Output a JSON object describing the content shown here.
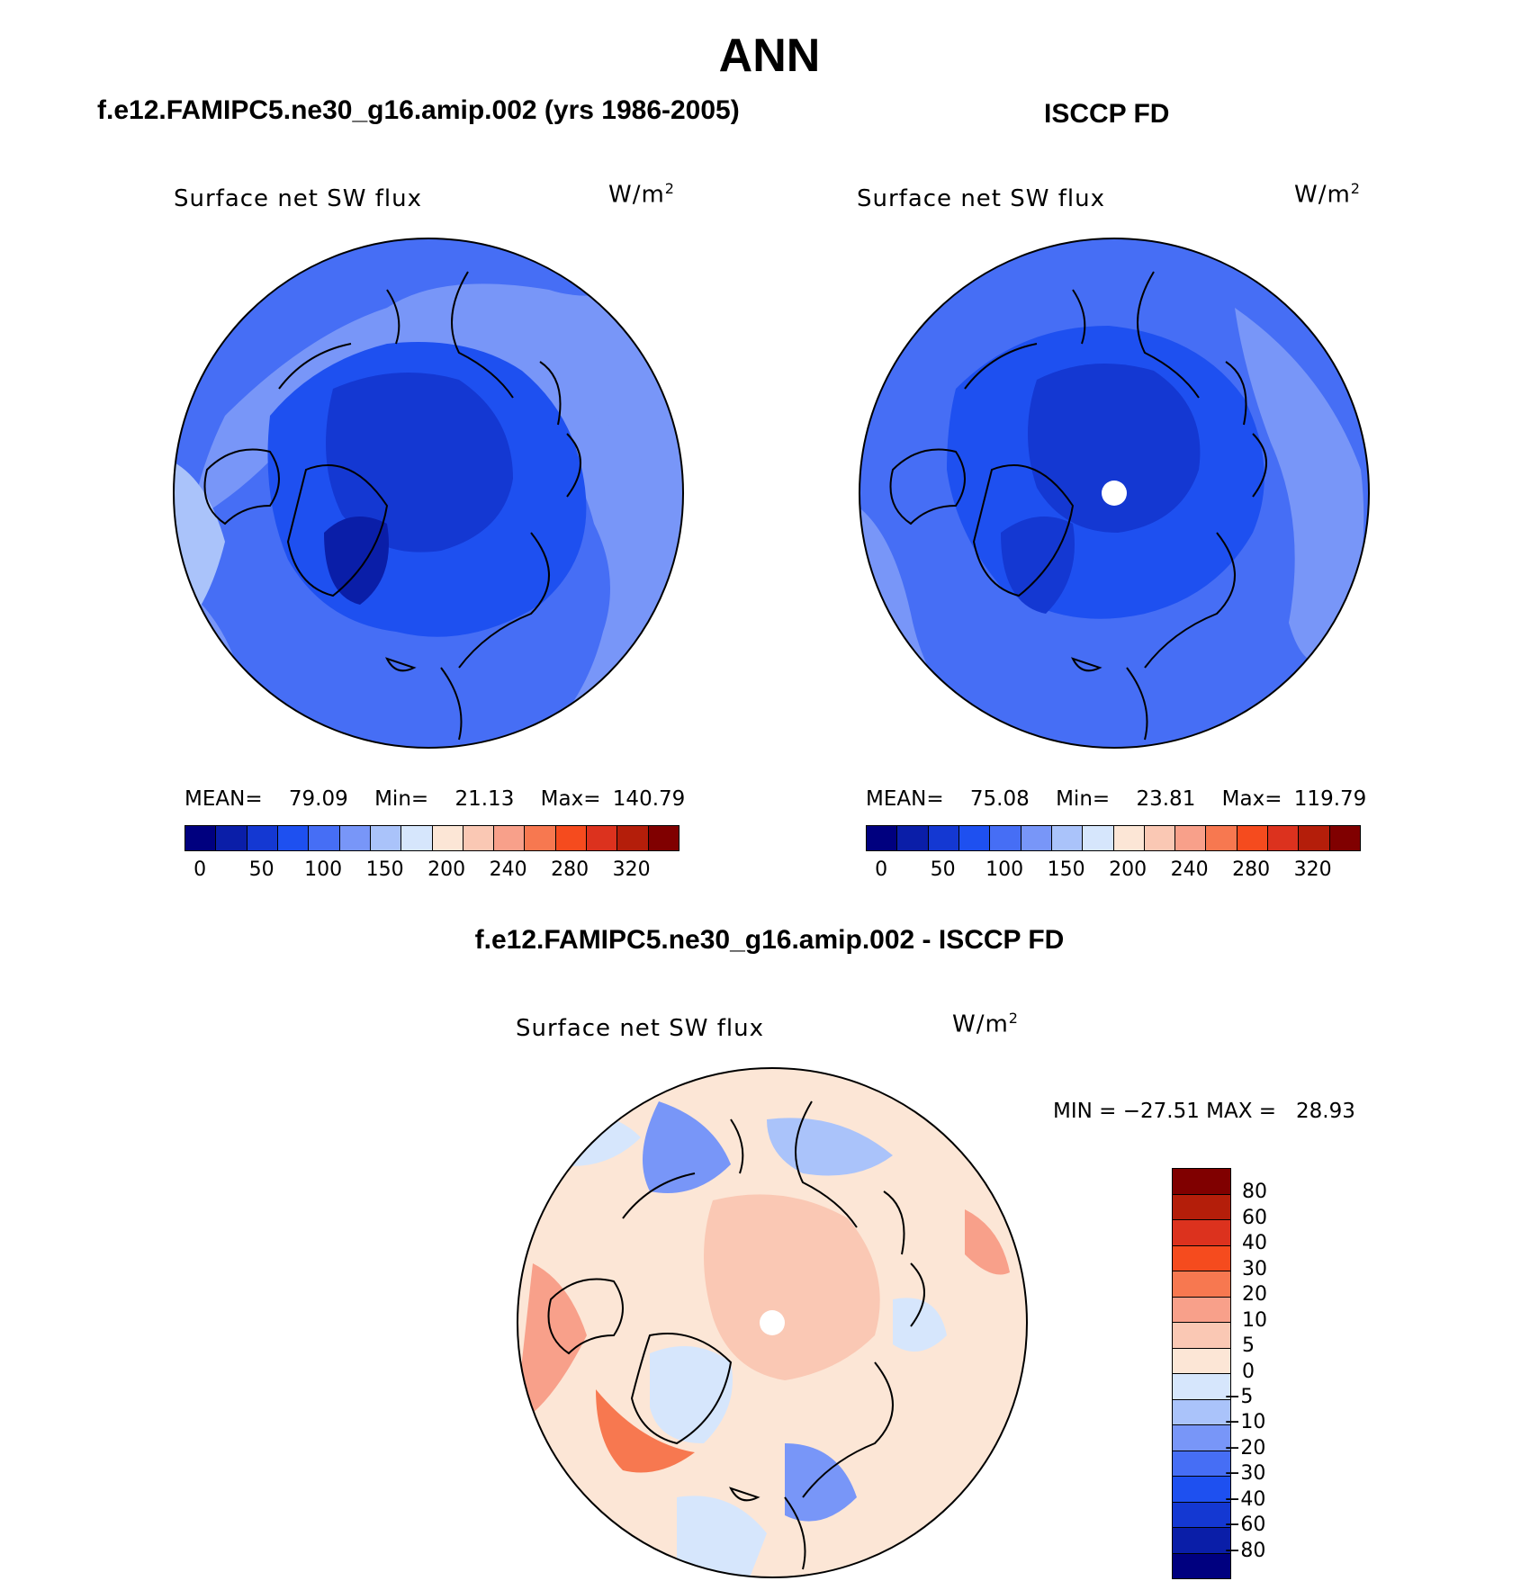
{
  "figure": {
    "title": "ANN",
    "panel_left_title": "f.e12.FAMIPC5.ne30_g16.amip.002 (yrs 1986-2005)",
    "panel_right_title": "ISCCP FD",
    "panel_bottom_title": "f.e12.FAMIPC5.ne30_g16.amip.002 - ISCCP FD"
  },
  "panels": [
    {
      "variable": "Surface net SW flux",
      "units_base": "W/m",
      "units_exp": "2",
      "mean_label": "MEAN=",
      "mean": "79.09",
      "min_label": "Min=",
      "min": "21.13",
      "max_label": "Max=",
      "max": "140.79"
    },
    {
      "variable": "Surface net SW flux",
      "units_base": "W/m",
      "units_exp": "2",
      "mean_label": "MEAN=",
      "mean": "75.08",
      "min_label": "Min=",
      "min": "23.81",
      "max_label": "Max=",
      "max": "119.79"
    },
    {
      "variable": "Surface net SW flux",
      "units_base": "W/m",
      "units_exp": "2",
      "minmax": "MIN = −27.51 MAX =   28.93"
    }
  ],
  "colorbar_abs": {
    "ticks": [
      "0",
      "50",
      "100",
      "150",
      "200",
      "240",
      "280",
      "320"
    ],
    "colors": [
      "#00007f",
      "#0a1ea8",
      "#1438d2",
      "#1e50f0",
      "#466ef5",
      "#7896f8",
      "#aac3fa",
      "#d6e6fc",
      "#fce6d6",
      "#fac8b4",
      "#f8a08a",
      "#f77850",
      "#f54b1e",
      "#dc321e",
      "#b41e0a",
      "#800000"
    ]
  },
  "colorbar_diff": {
    "ticks": [
      "80",
      "60",
      "40",
      "30",
      "20",
      "10",
      "5",
      "0",
      "−5",
      "−10",
      "−20",
      "−30",
      "−40",
      "−60",
      "−80"
    ],
    "colors": [
      "#800000",
      "#b41e0a",
      "#dc321e",
      "#f54b1e",
      "#f77850",
      "#f8a08a",
      "#fac8b4",
      "#fce6d6",
      "#d6e6fc",
      "#aac3fa",
      "#7896f8",
      "#466ef5",
      "#1e50f0",
      "#1438d2",
      "#0a1ea8",
      "#00007f"
    ]
  }
}
